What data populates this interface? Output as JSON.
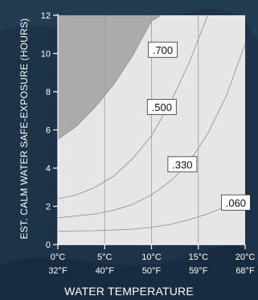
{
  "colors": {
    "background": "#1d3347",
    "plot_base": "#ababab",
    "band_060": "#b6b6b6",
    "band_330": "#c3c3c3",
    "band_500": "#d3d3d3",
    "band_700": "#e6e6e6",
    "axis": "#ffffff",
    "label_box_fill": "#ffffff",
    "label_box_stroke": "#333333"
  },
  "chart_data": {
    "type": "area",
    "xlabel": "WATER TEMPERATURE",
    "ylabel": "EST. CALM WATER SAFE-EXPOSURE (HOURS)",
    "xlim": [
      0,
      20
    ],
    "ylim": [
      0,
      12
    ],
    "x_ticks": [
      {
        "value": 0,
        "celsius": "0°C",
        "fahrenheit": "32°F"
      },
      {
        "value": 5,
        "celsius": "5°C",
        "fahrenheit": "40°F"
      },
      {
        "value": 10,
        "celsius": "10°C",
        "fahrenheit": "50°F"
      },
      {
        "value": 15,
        "celsius": "15°C",
        "fahrenheit": "59°F"
      },
      {
        "value": 20,
        "celsius": "20°C",
        "fahrenheit": "68°F"
      }
    ],
    "y_ticks": [
      0,
      2,
      4,
      6,
      8,
      10,
      12
    ],
    "series": [
      {
        "name": ".700",
        "x": [
          0,
          2,
          4,
          6,
          8,
          10,
          11
        ],
        "y": [
          5.5,
          6.2,
          7.2,
          8.4,
          9.9,
          11.7,
          12
        ]
      },
      {
        "name": ".500",
        "x": [
          0,
          2,
          4,
          6,
          8,
          10,
          12,
          14,
          16
        ],
        "y": [
          2.4,
          2.6,
          3.0,
          3.6,
          4.5,
          5.7,
          7.4,
          9.5,
          12
        ]
      },
      {
        "name": ".330",
        "x": [
          0,
          2,
          4,
          6,
          8,
          10,
          12,
          14,
          16,
          18,
          20
        ],
        "y": [
          1.4,
          1.5,
          1.6,
          1.8,
          2.1,
          2.6,
          3.3,
          4.3,
          5.8,
          7.8,
          10.5
        ]
      },
      {
        "name": ".060",
        "x": [
          0,
          4,
          8,
          10,
          12,
          14,
          16,
          18,
          20
        ],
        "y": [
          0.7,
          0.72,
          0.8,
          0.9,
          1.05,
          1.3,
          1.6,
          2.0,
          2.6
        ]
      }
    ],
    "series_labels": [
      {
        "text": ".700",
        "x": 11.2,
        "y": 10.2
      },
      {
        "text": ".500",
        "x": 11.1,
        "y": 7.2
      },
      {
        "text": ".330",
        "x": 13.3,
        "y": 4.2
      },
      {
        "text": ".060",
        "x": 19.0,
        "y": 2.2
      }
    ]
  }
}
